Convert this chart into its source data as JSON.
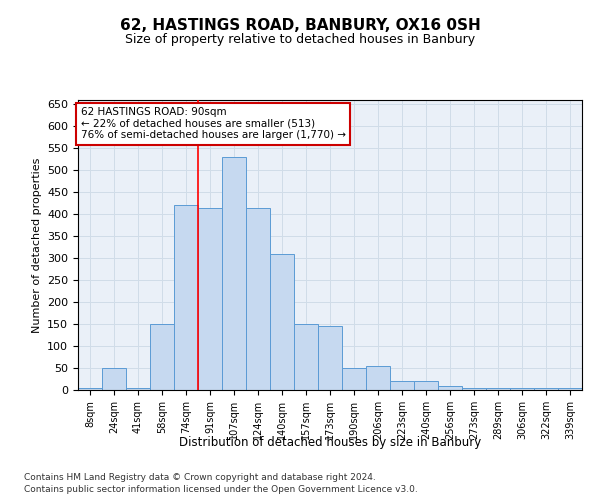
{
  "title1": "62, HASTINGS ROAD, BANBURY, OX16 0SH",
  "title2": "Size of property relative to detached houses in Banbury",
  "xlabel": "Distribution of detached houses by size in Banbury",
  "ylabel": "Number of detached properties",
  "categories": [
    "8sqm",
    "24sqm",
    "41sqm",
    "58sqm",
    "74sqm",
    "91sqm",
    "107sqm",
    "124sqm",
    "140sqm",
    "157sqm",
    "173sqm",
    "190sqm",
    "206sqm",
    "223sqm",
    "240sqm",
    "256sqm",
    "273sqm",
    "289sqm",
    "306sqm",
    "322sqm",
    "339sqm"
  ],
  "values": [
    5,
    50,
    5,
    150,
    420,
    415,
    530,
    415,
    310,
    150,
    145,
    50,
    55,
    20,
    20,
    10,
    5,
    5,
    5,
    5,
    5
  ],
  "bar_color": "#c6d9f0",
  "bar_edge_color": "#5b9bd5",
  "grid_color": "#d0dce8",
  "background_color": "#eaf0f8",
  "red_line_index": 5,
  "annotation_line1": "62 HASTINGS ROAD: 90sqm",
  "annotation_line2": "← 22% of detached houses are smaller (513)",
  "annotation_line3": "76% of semi-detached houses are larger (1,770) →",
  "annotation_box_color": "#ffffff",
  "annotation_box_edge": "#cc0000",
  "ylim": [
    0,
    660
  ],
  "yticks": [
    0,
    50,
    100,
    150,
    200,
    250,
    300,
    350,
    400,
    450,
    500,
    550,
    600,
    650
  ],
  "footnote1": "Contains HM Land Registry data © Crown copyright and database right 2024.",
  "footnote2": "Contains public sector information licensed under the Open Government Licence v3.0."
}
